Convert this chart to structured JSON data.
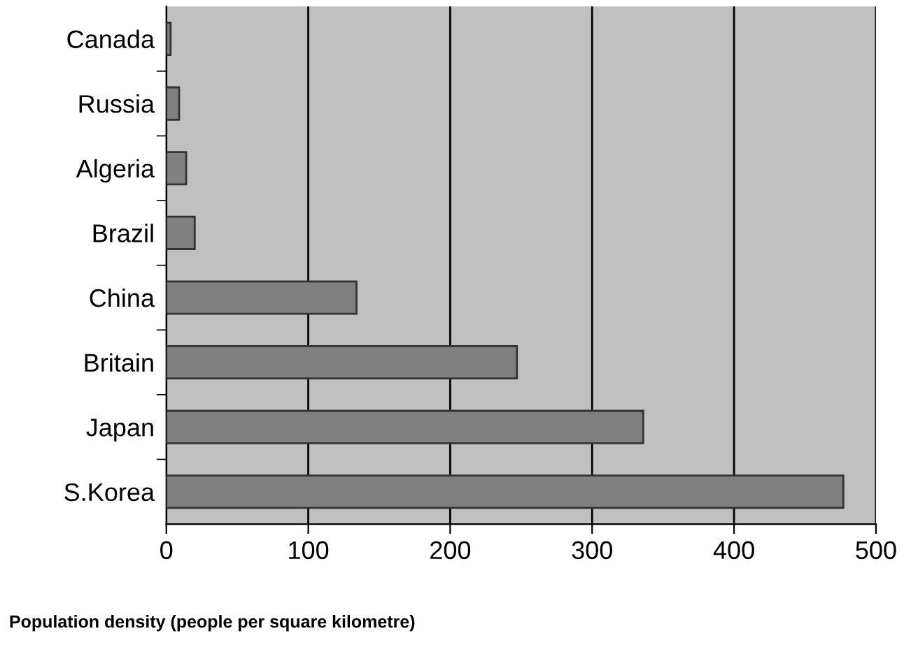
{
  "chart_data": {
    "type": "bar",
    "orientation": "horizontal",
    "xlabel": "Population density (people per square kilometre)",
    "categories": [
      "Canada",
      "Russia",
      "Algeria",
      "Brazil",
      "China",
      "Britain",
      "Japan",
      "S.Korea"
    ],
    "values": [
      3,
      9,
      14,
      20,
      134,
      247,
      336,
      477
    ],
    "color": "#808080",
    "xlim": [
      0,
      500
    ],
    "xticks": [
      0,
      100,
      200,
      300,
      400,
      500
    ],
    "grid": "x",
    "legend": false
  }
}
